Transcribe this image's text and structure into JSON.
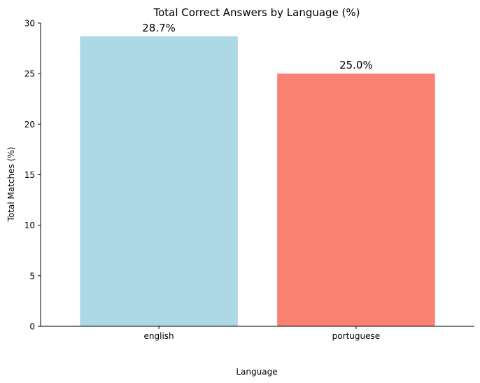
{
  "chart_data": {
    "type": "bar",
    "title": "Total Correct Answers by Language (%)",
    "xlabel": "Language",
    "ylabel": "Total Matches (%)",
    "categories": [
      "english",
      "portuguese"
    ],
    "values": [
      28.7,
      25.0
    ],
    "data_labels": [
      "28.7%",
      "25.0%"
    ],
    "colors": [
      "#add8e6",
      "#fa8072"
    ],
    "ylim": [
      0,
      30
    ],
    "yticks": [
      0,
      5,
      10,
      15,
      20,
      25,
      30
    ],
    "grid": false,
    "legend": "none"
  }
}
